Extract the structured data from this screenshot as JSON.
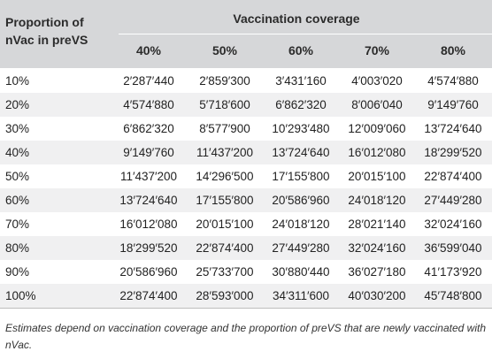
{
  "table": {
    "row_header": "Proportion of nVac in preVS",
    "group_header": "Vaccination coverage",
    "columns": [
      "40%",
      "50%",
      "60%",
      "70%",
      "80%"
    ],
    "rows": [
      {
        "label": "10%",
        "values": [
          "2′287′440",
          "2′859′300",
          "3′431′160",
          "4′003′020",
          "4′574′880"
        ]
      },
      {
        "label": "20%",
        "values": [
          "4′574′880",
          "5′718′600",
          "6′862′320",
          "8′006′040",
          "9′149′760"
        ]
      },
      {
        "label": "30%",
        "values": [
          "6′862′320",
          "8′577′900",
          "10′293′480",
          "12′009′060",
          "13′724′640"
        ]
      },
      {
        "label": "40%",
        "values": [
          "9′149′760",
          "11′437′200",
          "13′724′640",
          "16′012′080",
          "18′299′520"
        ]
      },
      {
        "label": "50%",
        "values": [
          "11′437′200",
          "14′296′500",
          "17′155′800",
          "20′015′100",
          "22′874′400"
        ]
      },
      {
        "label": "60%",
        "values": [
          "13′724′640",
          "17′155′800",
          "20′586′960",
          "24′018′120",
          "27′449′280"
        ]
      },
      {
        "label": "70%",
        "values": [
          "16′012′080",
          "20′015′100",
          "24′018′120",
          "28′021′140",
          "32′024′160"
        ]
      },
      {
        "label": "80%",
        "values": [
          "18′299′520",
          "22′874′400",
          "27′449′280",
          "32′024′160",
          "36′599′040"
        ]
      },
      {
        "label": "90%",
        "values": [
          "20′586′960",
          "25′733′700",
          "30′880′440",
          "36′027′180",
          "41′173′920"
        ]
      },
      {
        "label": "100%",
        "values": [
          "22′874′400",
          "28′593′000",
          "34′311′600",
          "40′030′200",
          "45′748′800"
        ]
      }
    ]
  },
  "note": "Estimates depend on vaccination coverage and the proportion of preVS that are newly vaccinated with nVac."
}
